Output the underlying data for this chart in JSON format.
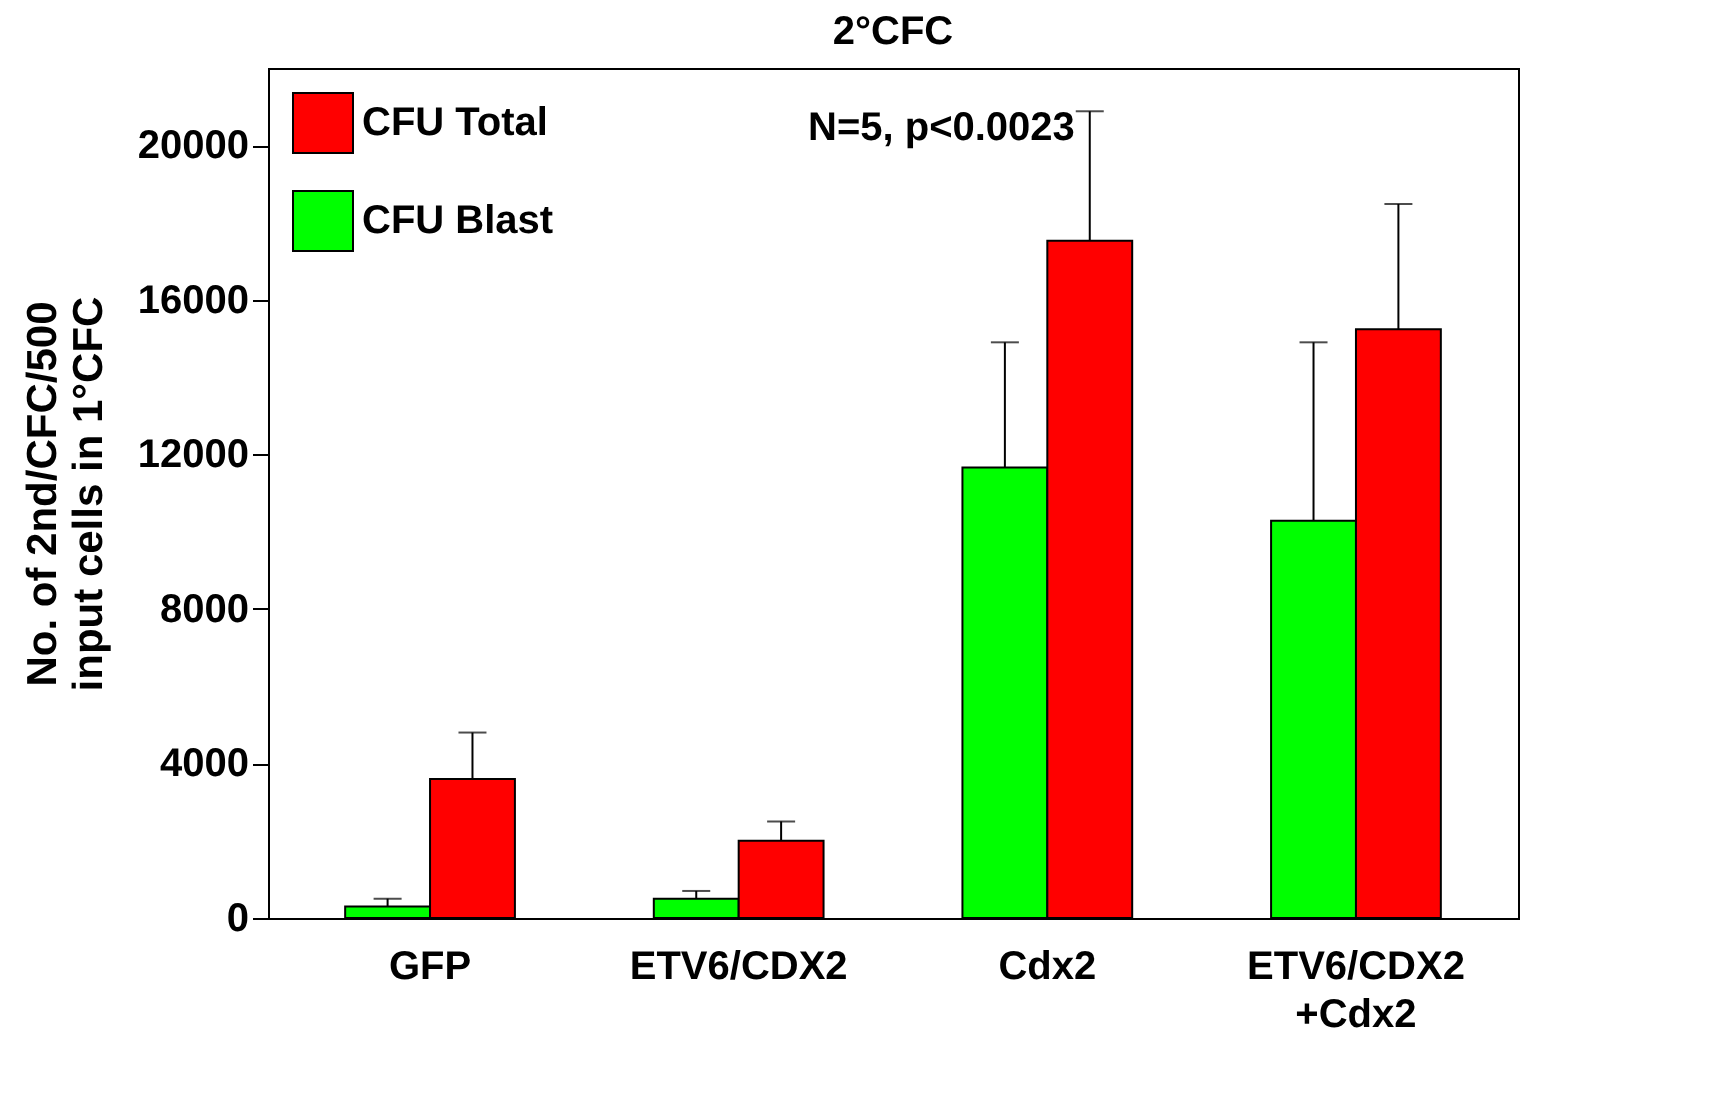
{
  "chart_data": {
    "type": "bar",
    "title": "2°CFC",
    "ylabel": "No. of 2nd/CFC/500 input cells in 1°CFC",
    "categories": [
      "GFP",
      "ETV6/CDX2",
      "Cdx2",
      "ETV6/CDX2 +Cdx2"
    ],
    "series": [
      {
        "name": "CFU Blast",
        "color": "#00ff00",
        "values": [
          300,
          500,
          11660,
          10280
        ],
        "errors": [
          [
            300,
            500
          ],
          [
            500,
            700
          ],
          [
            11660,
            14900
          ],
          [
            10280,
            14900
          ]
        ]
      },
      {
        "name": "CFU Total",
        "color": "#ff0000",
        "values": [
          3600,
          2000,
          17530,
          15240
        ],
        "errors": [
          [
            3600,
            4800
          ],
          [
            2000,
            2500
          ],
          [
            17530,
            20880
          ],
          [
            15240,
            18480
          ]
        ]
      }
    ],
    "ylim": [
      0,
      22000
    ],
    "yticks": [
      0,
      4000,
      8000,
      12000,
      16000,
      20000
    ],
    "annotations": [
      "N=5, p<0.0023"
    ],
    "legend": "top left",
    "grid": false
  }
}
